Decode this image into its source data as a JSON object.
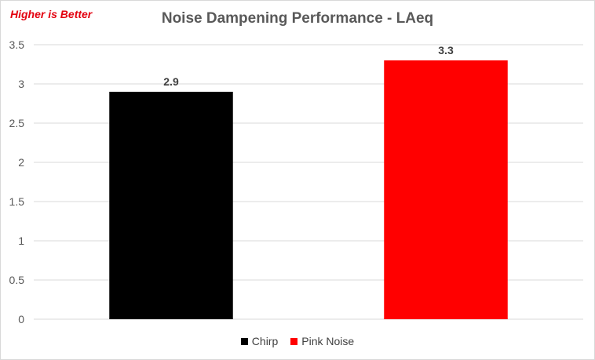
{
  "note": "Higher is Better",
  "colors": {
    "note": "#e3000f",
    "grid": "#d9d9d9",
    "axis_text": "#595959"
  },
  "chart_data": {
    "type": "bar",
    "title": "Noise Dampening Performance - LAeq",
    "xlabel": "",
    "ylabel": "",
    "ylim": [
      0,
      3.5
    ],
    "yticks": [
      0,
      0.5,
      1,
      1.5,
      2,
      2.5,
      3,
      3.5
    ],
    "ytick_labels": [
      "0",
      "0.5",
      "1",
      "1.5",
      "2",
      "2.5",
      "3",
      "3.5"
    ],
    "grid": true,
    "legend_position": "bottom",
    "series": [
      {
        "name": "Chirp",
        "value": 2.9,
        "label": "2.9",
        "color": "#000000"
      },
      {
        "name": "Pink Noise",
        "value": 3.3,
        "label": "3.3",
        "color": "#ff0000"
      }
    ]
  }
}
